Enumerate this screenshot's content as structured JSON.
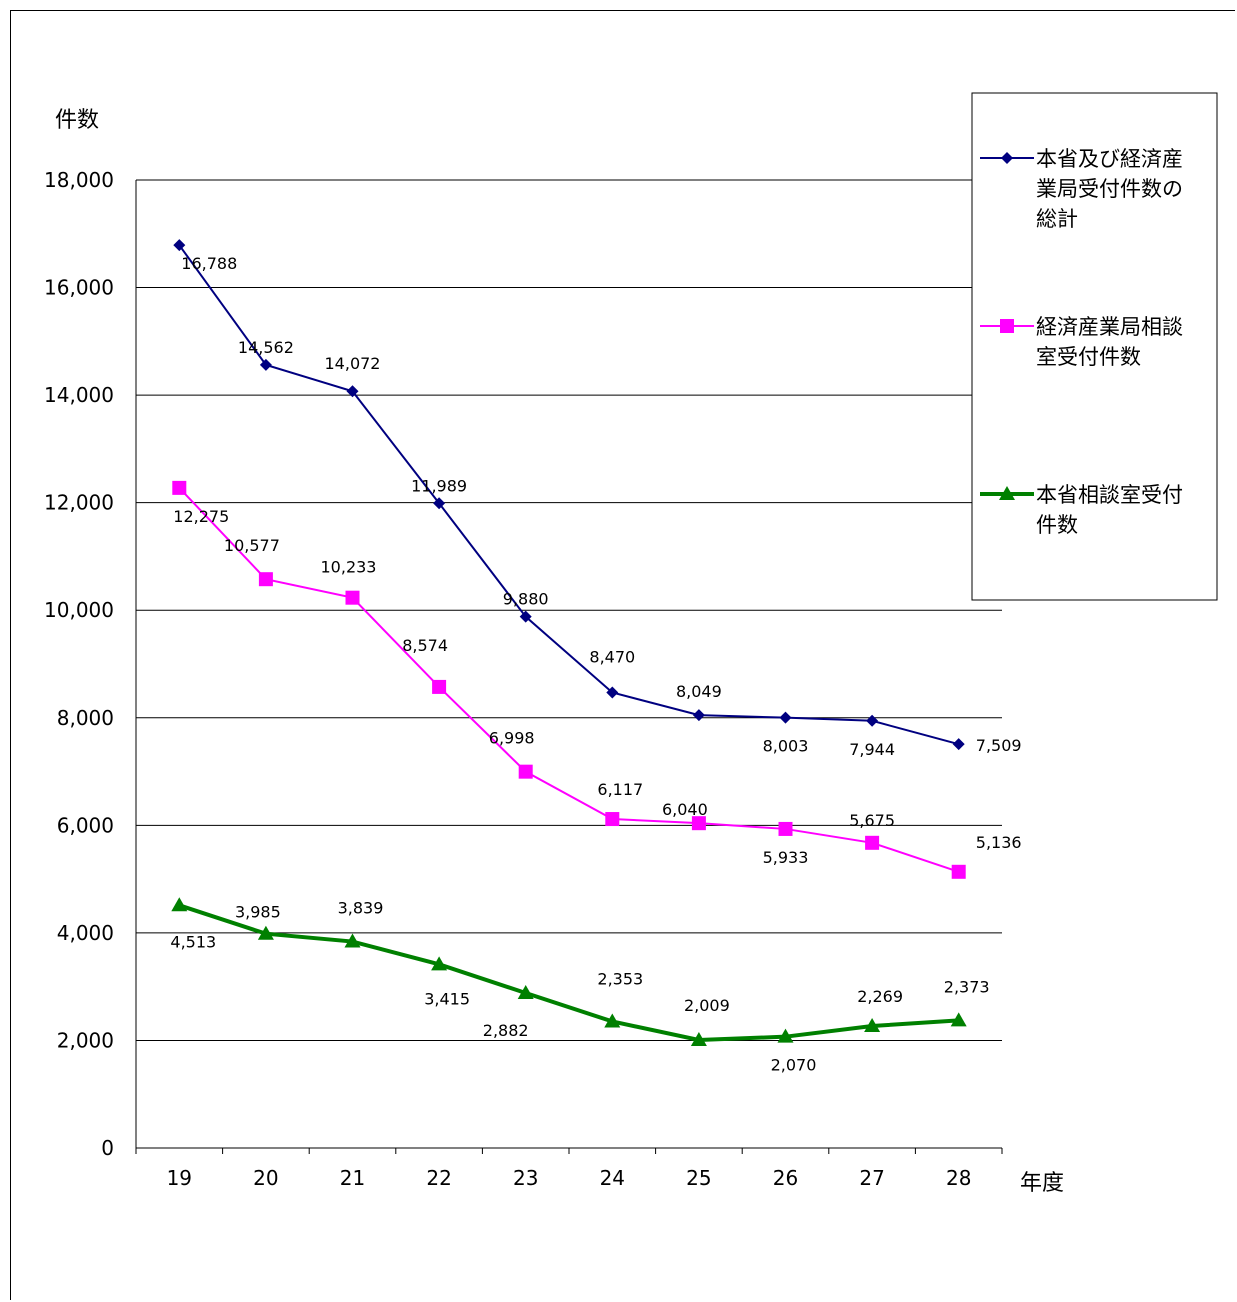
{
  "chart_data": {
    "type": "line",
    "ylabel": "件数",
    "xlabel": "年度",
    "categories": [
      "19",
      "20",
      "21",
      "22",
      "23",
      "24",
      "25",
      "26",
      "27",
      "28"
    ],
    "ylim": [
      0,
      18000
    ],
    "yticks": [
      "0",
      "2,000",
      "4,000",
      "6,000",
      "8,000",
      "10,000",
      "12,000",
      "14,000",
      "16,000",
      "18,000"
    ],
    "grid": true,
    "legend_position": "right",
    "series": [
      {
        "name": "本省及び経済産業局受付件数の総計",
        "legend_lines": [
          "本省及び経済産",
          "業局受付件数の",
          "総計"
        ],
        "color": "#000080",
        "marker": "diamond",
        "values": [
          16788,
          14562,
          14072,
          11989,
          9880,
          8470,
          8049,
          8003,
          7944,
          7509
        ],
        "labels": [
          "16,788",
          "14,562",
          "14,072",
          "11,989",
          "9,880",
          "8,470",
          "8,049",
          "8,003",
          "7,944",
          "7,509"
        ]
      },
      {
        "name": "経済産業局相談室受付件数",
        "legend_lines": [
          "経済産業局相談",
          "室受付件数"
        ],
        "color": "#ff00ff",
        "marker": "square",
        "values": [
          12275,
          10577,
          10233,
          8574,
          6998,
          6117,
          6040,
          5933,
          5675,
          5136
        ],
        "labels": [
          "12,275",
          "10,577",
          "10,233",
          "8,574",
          "6,998",
          "6,117",
          "6,040",
          "5,933",
          "5,675",
          "5,136"
        ]
      },
      {
        "name": "本省相談室受付件数",
        "legend_lines": [
          "本省相談室受付",
          "件数"
        ],
        "color": "#008000",
        "marker": "triangle",
        "values": [
          4513,
          3985,
          3839,
          3415,
          2882,
          2353,
          2009,
          2070,
          2269,
          2373
        ],
        "labels": [
          "4,513",
          "3,985",
          "3,839",
          "3,415",
          "2,882",
          "2,353",
          "2,009",
          "2,070",
          "2,269",
          "2,373"
        ]
      }
    ]
  }
}
